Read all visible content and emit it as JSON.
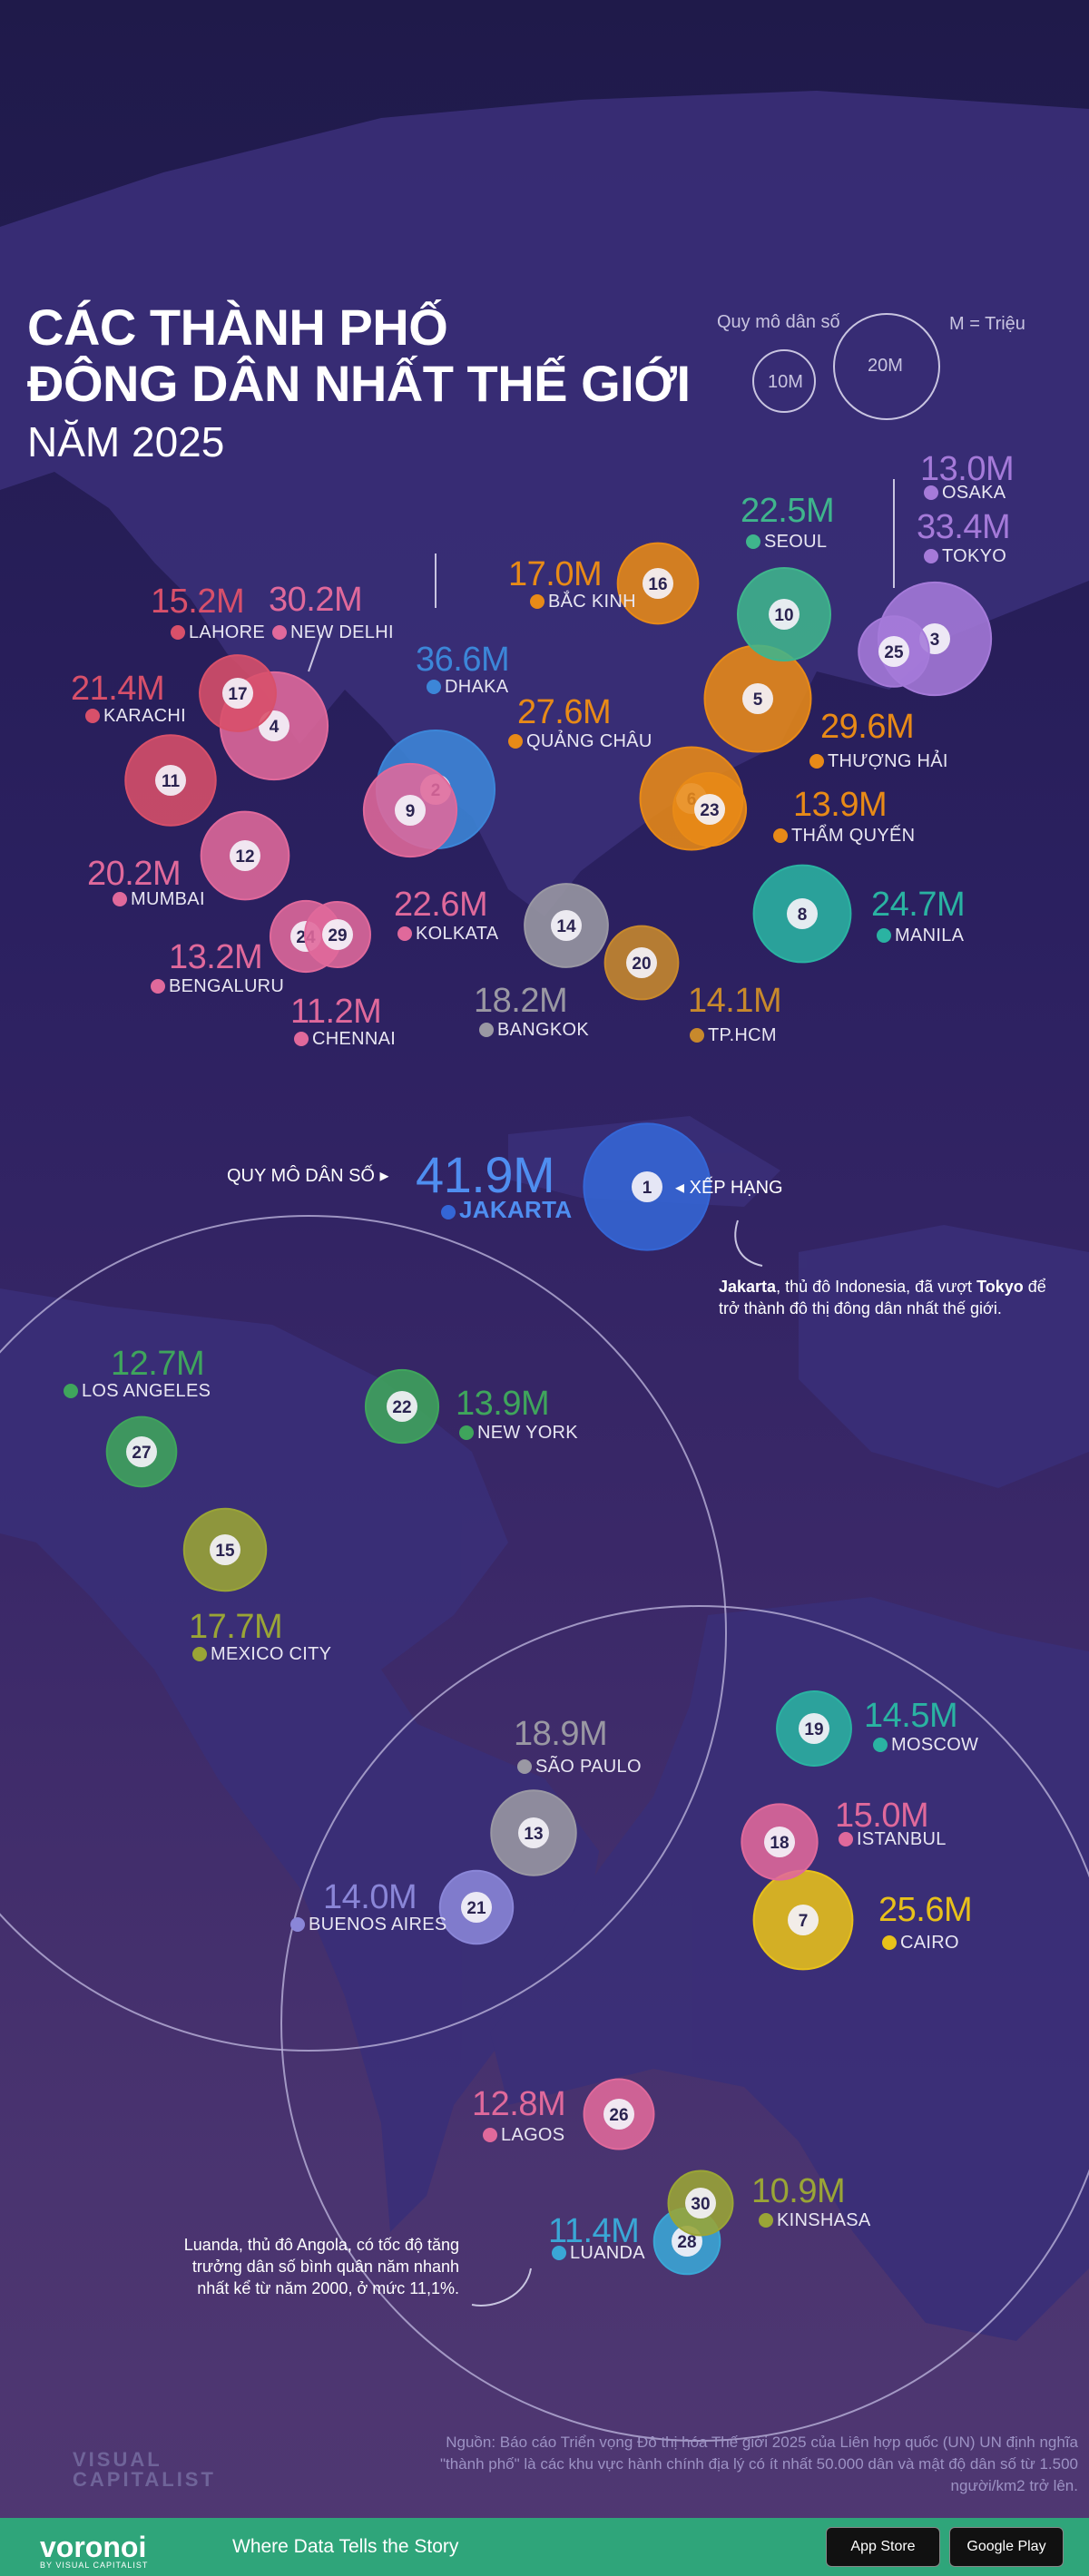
{
  "title_lines": [
    "CÁC THÀNH PHỐ",
    "ĐÔNG DÂN NHẤT THẾ GIỚI"
  ],
  "subtitle": "NĂM 2025",
  "legend": {
    "heading": "Quy mô dân số",
    "small": "10M",
    "large": "20M",
    "unit_note": "M = Triệu"
  },
  "colors": {
    "orange": "#e88a17",
    "pink": "#e0699b",
    "rose": "#d8506a",
    "blue": "#3c86d8",
    "violet": "#a57ad9",
    "teal": "#2ab3a2",
    "green": "#3fa55c",
    "olive": "#9aa536",
    "grey": "#9a98a3",
    "brown": "#c8892c",
    "yellow": "#e8c11a",
    "sky": "#3aa7d6",
    "lavender": "#8a86d8"
  },
  "cities": [
    {
      "rank": "1",
      "name": "JAKARTA",
      "value": "41.9M",
      "color": "#3466d6",
      "pop": 41.9
    },
    {
      "rank": "2",
      "name": "DHAKA",
      "value": "36.6M",
      "color": "#3c86d8",
      "pop": 36.6
    },
    {
      "rank": "3",
      "name": "TOKYO",
      "value": "33.4M",
      "color": "#a57ad9",
      "pop": 33.4
    },
    {
      "rank": "4",
      "name": "NEW DELHI",
      "value": "30.2M",
      "color": "#e0699b",
      "pop": 30.2
    },
    {
      "rank": "5",
      "name": "THƯỢNG HẢI",
      "value": "29.6M",
      "color": "#e88a17",
      "pop": 29.6
    },
    {
      "rank": "6",
      "name": "QUẢNG CHÂU",
      "value": "27.6M",
      "color": "#e88a17",
      "pop": 27.6
    },
    {
      "rank": "7",
      "name": "CAIRO",
      "value": "25.6M",
      "color": "#e8c11a",
      "pop": 25.6
    },
    {
      "rank": "8",
      "name": "MANILA",
      "value": "24.7M",
      "color": "#2ab3a2",
      "pop": 24.7
    },
    {
      "rank": "9",
      "name": "KOLKATA",
      "value": "22.6M",
      "color": "#e0699b",
      "pop": 22.6
    },
    {
      "rank": "10",
      "name": "SEOUL",
      "value": "22.5M",
      "color": "#3fb58c",
      "pop": 22.5
    },
    {
      "rank": "11",
      "name": "KARACHI",
      "value": "21.4M",
      "color": "#d8506a",
      "pop": 21.4
    },
    {
      "rank": "12",
      "name": "MUMBAI",
      "value": "20.2M",
      "color": "#e0699b",
      "pop": 20.2
    },
    {
      "rank": "13",
      "name": "SÃO PAULO",
      "value": "18.9M",
      "color": "#9a98a3",
      "pop": 18.9
    },
    {
      "rank": "14",
      "name": "BANGKOK",
      "value": "18.2M",
      "color": "#9a98a3",
      "pop": 18.2
    },
    {
      "rank": "15",
      "name": "MEXICO CITY",
      "value": "17.7M",
      "color": "#9aa536",
      "pop": 17.7
    },
    {
      "rank": "16",
      "name": "BẮC KINH",
      "value": "17.0M",
      "color": "#e88a17",
      "pop": 17.0
    },
    {
      "rank": "17",
      "name": "LAHORE",
      "value": "15.2M",
      "color": "#d8506a",
      "pop": 15.2
    },
    {
      "rank": "18",
      "name": "ISTANBUL",
      "value": "15.0M",
      "color": "#e0699b",
      "pop": 15.0
    },
    {
      "rank": "19",
      "name": "MOSCOW",
      "value": "14.5M",
      "color": "#2ab3a2",
      "pop": 14.5
    },
    {
      "rank": "20",
      "name": "TP.HCM",
      "value": "14.1M",
      "color": "#c8892c",
      "pop": 14.1
    },
    {
      "rank": "21",
      "name": "BUENOS AIRES",
      "value": "14.0M",
      "color": "#8a86d8",
      "pop": 14.0
    },
    {
      "rank": "22",
      "name": "NEW YORK",
      "value": "13.9M",
      "color": "#3fa55c",
      "pop": 13.9
    },
    {
      "rank": "23",
      "name": "THẨM QUYẾN",
      "value": "13.9M",
      "color": "#e88a17",
      "pop": 13.9
    },
    {
      "rank": "24",
      "name": "BENGALURU",
      "value": "13.2M",
      "color": "#e0699b",
      "pop": 13.2
    },
    {
      "rank": "25",
      "name": "OSAKA",
      "value": "13.0M",
      "color": "#a57ad9",
      "pop": 13.0
    },
    {
      "rank": "26",
      "name": "LAGOS",
      "value": "12.8M",
      "color": "#e0699b",
      "pop": 12.8
    },
    {
      "rank": "27",
      "name": "LOS ANGELES",
      "value": "12.7M",
      "color": "#3fa55c",
      "pop": 12.7
    },
    {
      "rank": "28",
      "name": "LUANDA",
      "value": "11.4M",
      "color": "#3aa7d6",
      "pop": 11.4
    },
    {
      "rank": "29",
      "name": "CHENNAI",
      "value": "11.2M",
      "color": "#e0699b",
      "pop": 11.2
    },
    {
      "rank": "30",
      "name": "KINSHASA",
      "value": "10.9M",
      "color": "#9aa536",
      "pop": 10.9
    }
  ],
  "annotations": {
    "pop_scale_label": "QUY MÔ DÂN SỐ",
    "rank_label": "XẾP HẠNG",
    "jakarta_note_bold1": "Jakarta",
    "jakarta_note_mid": ", thủ đô Indonesia, đã vượt ",
    "jakarta_note_bold2": "Tokyo",
    "jakarta_note_end": " để trở thành đô thị đông dân nhất thế giới.",
    "luanda_note": "Luanda, thủ đô Angola, có tốc độ tăng trưởng dân số bình quân năm nhanh nhất kể từ năm 2000, ở mức 11,1%."
  },
  "footer": {
    "source": "Nguồn: Báo cáo Triển vọng Đô thị hóa Thế giới 2025 của Liên hợp quốc (UN) UN định nghĩa \"thành phố\" là các khu vực hành chính địa lý có ít nhất 50.000 dân và mật độ dân số từ 1.500 người/km2 trở lên.",
    "logo_line1": "VISUAL",
    "logo_line2": "CAPITALIST",
    "brand": "voronoi",
    "brand_sub": "BY VISUAL CAPITALIST",
    "tagline": "Where Data Tells the Story",
    "app_store": "App Store",
    "google_play": "Google Play"
  }
}
